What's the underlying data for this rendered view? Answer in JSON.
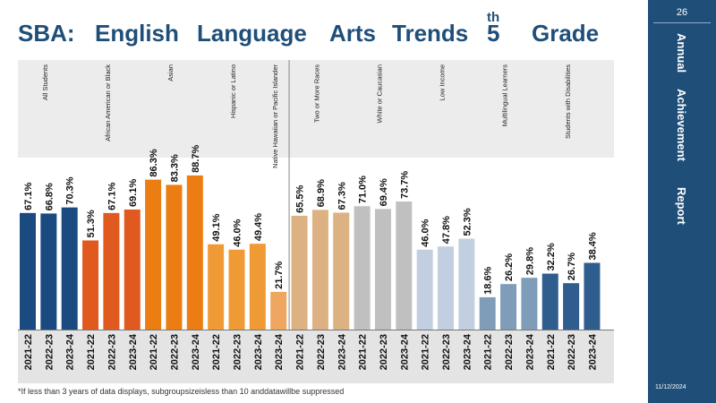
{
  "slide": {
    "title_parts": [
      "SBA:",
      "English",
      "Language",
      "Arts",
      "Trends",
      "5",
      "th",
      "Grade"
    ],
    "page_number": "26",
    "side_text": [
      "Annual",
      "Achievement",
      "Report"
    ],
    "date": "11/12/2024",
    "footnote": "*If less than 3 years of data displays, subgroupsizeisless than 10 anddatawillbe suppressed"
  },
  "colors": {
    "accent": "#1f4e79"
  },
  "chart_data": {
    "type": "bar",
    "title": "",
    "xlabel": "",
    "ylabel": "",
    "ylim": [
      0,
      100
    ],
    "grid": false,
    "legend": "none",
    "groups": [
      {
        "name": "All Students",
        "color": "#1a4a80",
        "years": [
          "2021-22",
          "2022-23",
          "2023-24"
        ],
        "values": [
          67.1,
          66.8,
          70.3
        ],
        "labels": [
          "67.1%",
          "66.8%",
          "70.3%"
        ]
      },
      {
        "name": "African American or Black",
        "color": "#e05a20",
        "years": [
          "2021-22",
          "2022-23",
          "2023-24"
        ],
        "values": [
          51.3,
          67.1,
          69.1
        ],
        "labels": [
          "51.3%",
          "67.1%",
          "69.1%"
        ]
      },
      {
        "name": "Asian",
        "color": "#ec7d12",
        "years": [
          "2021-22",
          "2022-23",
          "2023-24"
        ],
        "values": [
          86.3,
          83.3,
          88.7
        ],
        "labels": [
          "86.3%",
          "83.3%",
          "88.7%"
        ]
      },
      {
        "name": "Hispanic or Latino",
        "color": "#f09a35",
        "years": [
          "2021-22",
          "2022-23",
          "2023-24"
        ],
        "values": [
          49.1,
          46.0,
          49.4
        ],
        "labels": [
          "49.1%",
          "46.0%",
          "49.4%"
        ]
      },
      {
        "name": "Native Hawaiian or Pacific Islander",
        "color": "#eea660",
        "years": [
          "2023-24"
        ],
        "values": [
          21.7
        ],
        "labels": [
          "21.7%"
        ]
      },
      {
        "name": "Two or More Races",
        "color": "#ddb283",
        "years": [
          "2021-22",
          "2022-23",
          "2023-24"
        ],
        "values": [
          65.5,
          68.9,
          67.3
        ],
        "labels": [
          "65.5%",
          "68.9%",
          "67.3%"
        ]
      },
      {
        "name": "White or Caucasian",
        "color": "#c0c0c0",
        "years": [
          "2021-22",
          "2022-23",
          "2023-24"
        ],
        "values": [
          71.0,
          69.4,
          73.7
        ],
        "labels": [
          "71.0%",
          "69.4%",
          "73.7%"
        ]
      },
      {
        "name": "Low Income",
        "color": "#c2cfe0",
        "years": [
          "2021-22",
          "2022-23",
          "2023-24"
        ],
        "values": [
          46.0,
          47.8,
          52.3
        ],
        "labels": [
          "46.0%",
          "47.8%",
          "52.3%"
        ]
      },
      {
        "name": "Multilingual Learners",
        "color": "#7f9db8",
        "years": [
          "2021-22",
          "2022-23",
          "2023-24"
        ],
        "values": [
          18.6,
          26.2,
          29.8
        ],
        "labels": [
          "18.6%",
          "26.2%",
          "29.8%"
        ]
      },
      {
        "name": "Students with Disabilities",
        "color": "#2e5d8e",
        "years": [
          "2021-22",
          "2022-23",
          "2023-24"
        ],
        "values": [
          32.2,
          26.7,
          38.4
        ],
        "labels": [
          "32.2%",
          "26.7%",
          "38.4%"
        ]
      }
    ]
  }
}
